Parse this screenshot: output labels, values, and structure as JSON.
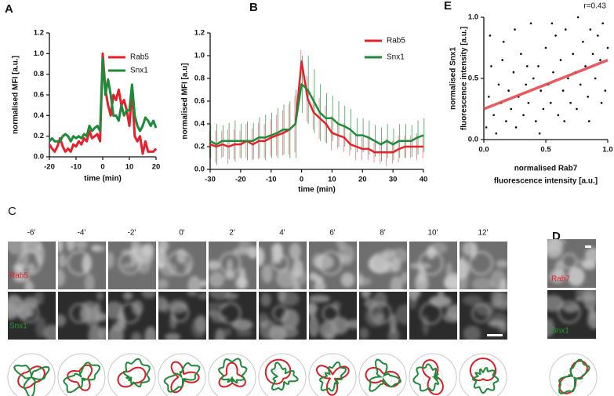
{
  "chart_data": [
    {
      "type": "line",
      "panel": "A",
      "xlabel": "time (min)",
      "ylabel": "normalised MFI [a.u.]",
      "x": [
        -20,
        -19,
        -18,
        -17,
        -16,
        -15,
        -14,
        -13,
        -12,
        -11,
        -10,
        -9,
        -8,
        -7,
        -6,
        -5,
        -4,
        -3,
        -2,
        -1,
        0,
        1,
        2,
        3,
        4,
        5,
        6,
        7,
        8,
        9,
        10,
        11,
        12,
        13,
        14,
        15,
        16,
        17,
        18,
        19,
        20
      ],
      "series": [
        {
          "name": "Rab5",
          "color": "#e8202a",
          "values": [
            0.12,
            0.08,
            0.05,
            0.1,
            0.18,
            0.1,
            0.05,
            0.08,
            0.05,
            0.12,
            0.1,
            0.15,
            0.12,
            0.18,
            0.15,
            0.25,
            0.18,
            0.2,
            0.22,
            0.15,
            1.0,
            0.65,
            0.5,
            0.4,
            0.6,
            0.55,
            0.65,
            0.5,
            0.55,
            0.45,
            0.3,
            0.65,
            0.2,
            0.15,
            0.2,
            0.03,
            0.15,
            0.05,
            0.05,
            0.05,
            0.08
          ]
        },
        {
          "name": "Snx1",
          "color": "#1e8a3a",
          "values": [
            0.15,
            0.18,
            0.15,
            0.15,
            0.15,
            0.2,
            0.22,
            0.2,
            0.15,
            0.2,
            0.18,
            0.2,
            0.18,
            0.22,
            0.2,
            0.3,
            0.25,
            0.28,
            0.3,
            0.25,
            0.95,
            0.6,
            0.75,
            0.6,
            0.4,
            0.4,
            0.35,
            0.5,
            0.4,
            0.45,
            0.45,
            0.7,
            0.4,
            0.3,
            0.25,
            0.3,
            0.38,
            0.35,
            0.3,
            0.35,
            0.28
          ]
        }
      ],
      "xlim": [
        -20,
        20
      ],
      "xticks": [
        -20,
        -10,
        0,
        10,
        20
      ],
      "ylim": [
        0,
        1.2
      ],
      "yticks": [
        {
          "value": 0,
          "label": "0.0"
        },
        0.2,
        0.4,
        0.6,
        0.8,
        {
          "value": 1,
          "label": "1.0"
        },
        1.2
      ],
      "legend": "upper right"
    },
    {
      "type": "line",
      "panel": "B",
      "xlabel": "time (min)",
      "ylabel": "normalised MFI [a.u]",
      "x": [
        -30,
        -28,
        -26,
        -24,
        -22,
        -20,
        -18,
        -16,
        -14,
        -12,
        -10,
        -8,
        -6,
        -4,
        -2,
        0,
        2,
        4,
        6,
        8,
        10,
        12,
        14,
        16,
        18,
        20,
        22,
        24,
        26,
        28,
        30,
        32,
        34,
        36,
        38,
        40
      ],
      "series": [
        {
          "name": "Rab5",
          "color": "#e8202a",
          "values": [
            0.22,
            0.2,
            0.22,
            0.2,
            0.22,
            0.22,
            0.25,
            0.22,
            0.25,
            0.25,
            0.28,
            0.3,
            0.32,
            0.35,
            0.4,
            0.95,
            0.62,
            0.5,
            0.45,
            0.4,
            0.32,
            0.3,
            0.28,
            0.22,
            0.2,
            0.18,
            0.18,
            0.15,
            0.15,
            0.15,
            0.15,
            0.18,
            0.2,
            0.2,
            0.2,
            0.2
          ],
          "errors": [
            0.12,
            0.14,
            0.12,
            0.15,
            0.13,
            0.12,
            0.15,
            0.14,
            0.16,
            0.15,
            0.16,
            0.18,
            0.2,
            0.22,
            0.25,
            0.1,
            0.2,
            0.15,
            0.18,
            0.16,
            0.15,
            0.12,
            0.13,
            0.1,
            0.12,
            0.1,
            0.1,
            0.09,
            0.1,
            0.12,
            0.1,
            0.12,
            0.1,
            0.1,
            0.12,
            0.1
          ]
        },
        {
          "name": "Snx1",
          "color": "#1e8a3a",
          "values": [
            0.25,
            0.22,
            0.25,
            0.25,
            0.25,
            0.25,
            0.25,
            0.25,
            0.28,
            0.28,
            0.3,
            0.32,
            0.35,
            0.35,
            0.4,
            0.75,
            0.7,
            0.6,
            0.5,
            0.45,
            0.45,
            0.4,
            0.38,
            0.35,
            0.3,
            0.3,
            0.28,
            0.25,
            0.22,
            0.25,
            0.22,
            0.25,
            0.25,
            0.25,
            0.28,
            0.3
          ],
          "errors": [
            0.15,
            0.18,
            0.14,
            0.16,
            0.18,
            0.15,
            0.17,
            0.16,
            0.18,
            0.2,
            0.2,
            0.22,
            0.22,
            0.25,
            0.3,
            0.25,
            0.3,
            0.28,
            0.25,
            0.22,
            0.2,
            0.2,
            0.18,
            0.18,
            0.15,
            0.15,
            0.15,
            0.14,
            0.15,
            0.15,
            0.14,
            0.15,
            0.15,
            0.14,
            0.15,
            0.15
          ]
        }
      ],
      "xlim": [
        -30,
        40
      ],
      "xticks": [
        -30,
        -20,
        -10,
        0,
        10,
        20,
        30,
        40
      ],
      "ylim": [
        0,
        1.2
      ],
      "yticks": [
        {
          "value": 0,
          "label": "0.0"
        },
        0.2,
        0.4,
        0.6,
        0.8,
        {
          "value": 1,
          "label": "1.0"
        },
        1.2
      ],
      "legend": "upper right"
    },
    {
      "type": "scatter",
      "panel": "E",
      "annotation": "r=0.43",
      "xlabel": [
        "normalised Rab7",
        "fluorescence intensity [a.u.]"
      ],
      "ylabel": [
        "normalised Snx1",
        "fluorescence intensity [a.u.]"
      ],
      "x": [
        0.02,
        0.04,
        0.06,
        0.08,
        0.1,
        0.12,
        0.14,
        0.16,
        0.18,
        0.2,
        0.22,
        0.24,
        0.26,
        0.28,
        0.3,
        0.32,
        0.34,
        0.36,
        0.38,
        0.4,
        0.42,
        0.44,
        0.46,
        0.48,
        0.5,
        0.52,
        0.54,
        0.56,
        0.58,
        0.6,
        0.62,
        0.64,
        0.66,
        0.68,
        0.7,
        0.72,
        0.74,
        0.76,
        0.78,
        0.8,
        0.82,
        0.84,
        0.86,
        0.88,
        0.9,
        0.92,
        0.94,
        0.96,
        0.98,
        1.0,
        0.15,
        0.25,
        0.45,
        0.65,
        0.35,
        0.55,
        0.75,
        0.85,
        0.05,
        0.95
      ],
      "values": [
        0.1,
        0.35,
        0.6,
        0.2,
        0.05,
        0.45,
        0.3,
        0.8,
        0.15,
        0.4,
        0.25,
        0.55,
        0.1,
        0.35,
        0.7,
        0.2,
        0.45,
        0.3,
        0.95,
        0.5,
        0.15,
        0.6,
        0.4,
        0.25,
        0.75,
        0.45,
        0.3,
        0.55,
        0.85,
        0.2,
        0.65,
        0.4,
        0.9,
        0.5,
        0.3,
        0.7,
        0.55,
        1.0,
        0.45,
        0.8,
        0.6,
        0.35,
        0.9,
        0.7,
        0.5,
        0.85,
        0.65,
        0.95,
        0.4,
        0.75,
        0.65,
        0.9,
        0.05,
        0.15,
        0.6,
        0.95,
        0.25,
        0.15,
        0.85,
        0.3
      ],
      "color": "#000000",
      "fit": {
        "color": "#e8474b",
        "x": [
          0,
          1
        ],
        "y": [
          0.25,
          0.65
        ]
      },
      "xlim": [
        0,
        1
      ],
      "xticks": [
        {
          "value": 0,
          "label": "0.0"
        },
        0.5,
        {
          "value": 1,
          "label": "1.0"
        }
      ],
      "ylim": [
        0,
        1
      ],
      "yticks": [
        {
          "value": 0,
          "label": "0.0"
        },
        0.5,
        {
          "value": 1,
          "label": "1.0"
        }
      ]
    }
  ],
  "panel_c": {
    "label": "C",
    "times": [
      "-6'",
      "-4'",
      "-2'",
      "0'",
      "2'",
      "4'",
      "6'",
      "8'",
      "10'",
      "12'"
    ],
    "rows": [
      "Rab5",
      "Snx1"
    ]
  },
  "panel_d": {
    "label": "D",
    "rows": [
      "Rab7",
      "Snx1"
    ]
  }
}
